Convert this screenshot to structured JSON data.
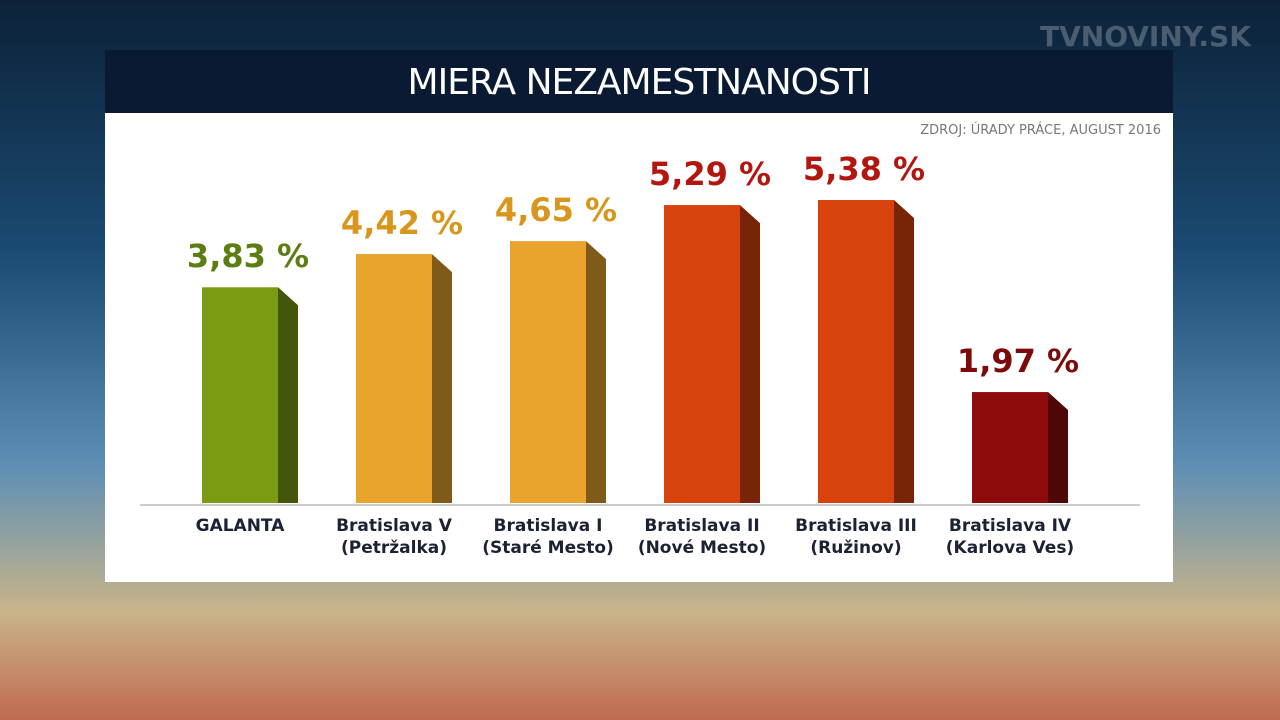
{
  "chart_data": {
    "type": "bar",
    "title": "MIERA NEZAMESTNANOSTI",
    "source": "ZDROJ: ÚRADY PRÁCE, AUGUST 2016",
    "logo": "TVNOVINY.SK",
    "categories": [
      "GALANTA",
      "Bratislava V (Petržalka)",
      "Bratislava I (Staré Mesto)",
      "Bratislava II (Nové Mesto)",
      "Bratislava III (Ružinov)",
      "Bratislava IV (Karlova Ves)"
    ],
    "values": [
      3.83,
      4.42,
      4.65,
      5.29,
      5.38,
      1.97
    ],
    "value_labels": [
      "3,83 %",
      "4,42 %",
      "4,65 %",
      "5,29 %",
      "5,38 %",
      "1,97 %"
    ],
    "colors": [
      "#7b9c12",
      "#e8a42c",
      "#e8a42c",
      "#d8420c",
      "#d8420c",
      "#8e0b0b"
    ],
    "label_colors": [
      "#5c7d12",
      "#d8961c",
      "#d8961c",
      "#b3160f",
      "#b3160f",
      "#7c0a0a"
    ]
  }
}
